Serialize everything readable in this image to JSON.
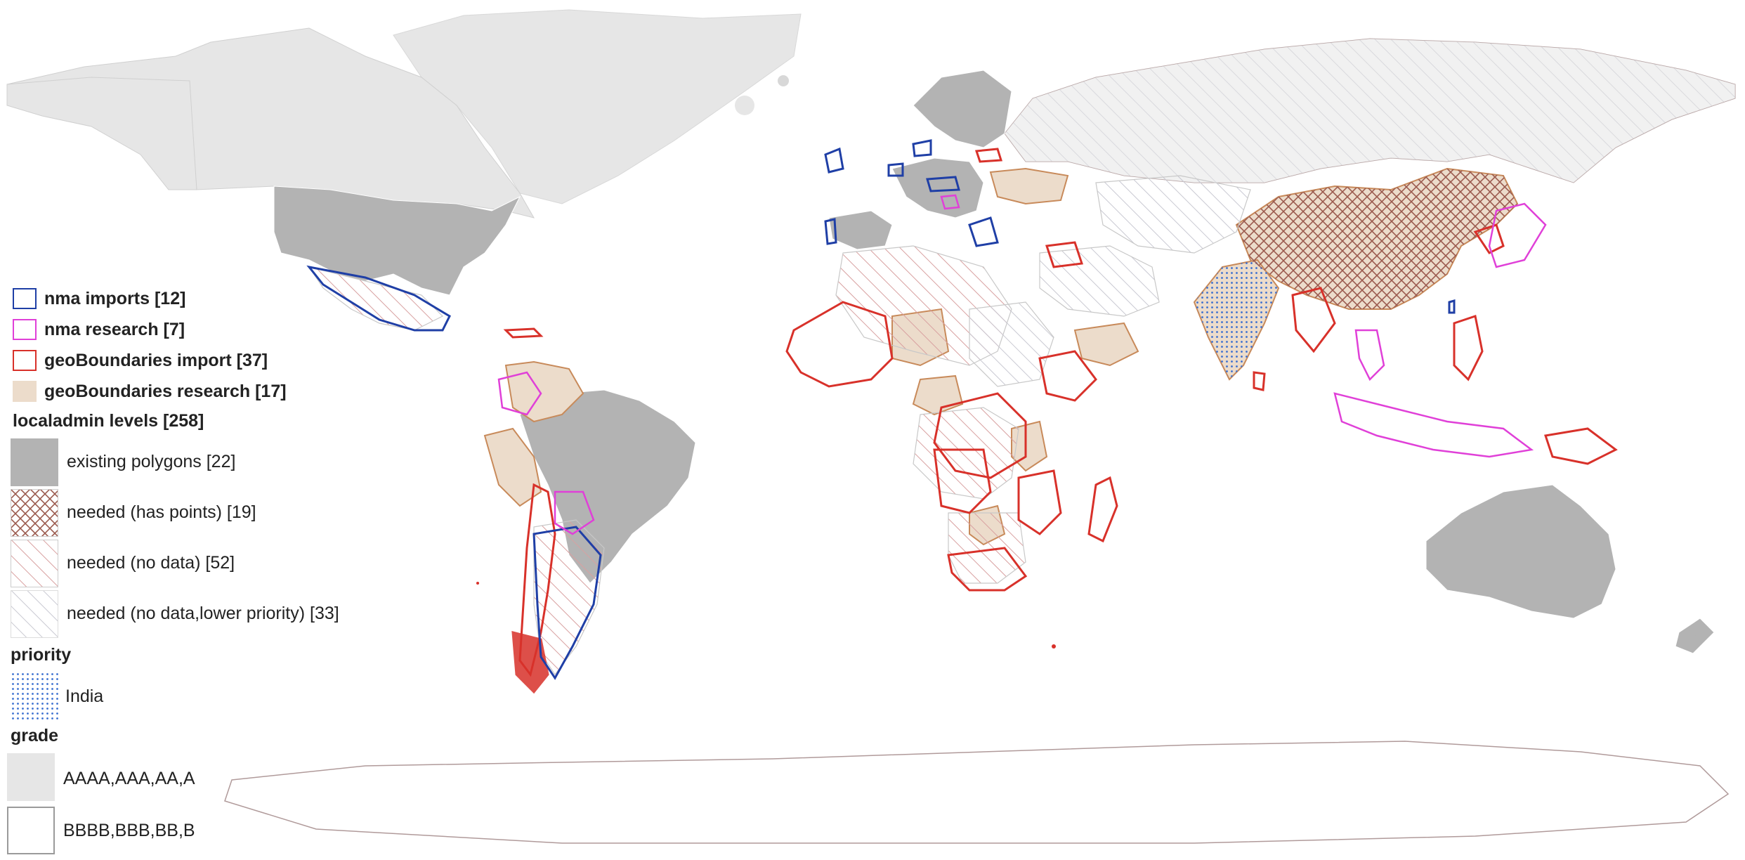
{
  "colors": {
    "nma_imports": "#1f3fa6",
    "nma_research": "#e040d8",
    "geoboundaries_import": "#d8312a",
    "geoboundaries_research_fill": "#ecdccb",
    "geoboundaries_research_stroke": "#c88a5a",
    "existing_polygons": "#b3b3b3",
    "grade_a": "#e6e6e6",
    "grade_b": "#ffffff",
    "hatch_has_points": "#9b5a4e",
    "hatch_no_data": "#d8a0a0",
    "hatch_low_priority": "#c9c9d2",
    "priority_dots": "#3a6fd0",
    "coast": "#b09a9a"
  },
  "legend": {
    "nma_imports": "nma imports [12]",
    "nma_research": "nma research [7]",
    "geoboundaries_import": "geoBoundaries import [37]",
    "geoboundaries_research": "geoBoundaries research [17]",
    "localadmin_heading": "localadmin levels [258]",
    "existing_polygons": "existing polygons [22]",
    "needed_has_points": "needed (has points) [19]",
    "needed_no_data": "needed (no data) [52]",
    "needed_low_priority": "needed (no data,lower priority) [33]",
    "priority_heading": "priority",
    "priority_india": "India",
    "grade_heading": "grade",
    "grade_a": "AAAA,AAA,AA,A",
    "grade_b": "BBBB,BBB,BB,B"
  }
}
